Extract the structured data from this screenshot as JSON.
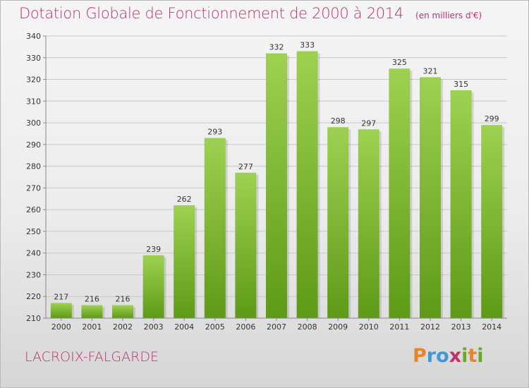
{
  "title": "Dotation Globale de Fonctionnement de 2000 à 2014",
  "unit_note": "(en milliers d'€)",
  "commune": "LACROIX-FALGARDE",
  "brand": {
    "text": "Proxiti",
    "letters": [
      {
        "ch": "P",
        "color": "#e8842a"
      },
      {
        "ch": "r",
        "color": "#3d9ad6"
      },
      {
        "ch": "o",
        "color": "#3d9ad6"
      },
      {
        "ch": "x",
        "color": "#c0306e"
      },
      {
        "ch": "i",
        "color": "#6aa82c"
      },
      {
        "ch": "t",
        "color": "#e8842a"
      },
      {
        "ch": "i",
        "color": "#6aa82c"
      }
    ]
  },
  "colors": {
    "bar_top": "#9ed151",
    "bar_bottom": "#5e9a17",
    "title": "#c0306e",
    "grid": "#c8c8c8"
  },
  "chart_data": {
    "type": "bar",
    "categories": [
      "2000",
      "2001",
      "2002",
      "2003",
      "2004",
      "2005",
      "2006",
      "2007",
      "2008",
      "2009",
      "2010",
      "2011",
      "2012",
      "2013",
      "2014"
    ],
    "values": [
      217,
      216,
      216,
      239,
      262,
      293,
      277,
      332,
      333,
      298,
      297,
      325,
      321,
      315,
      299
    ],
    "ylim": [
      210,
      340
    ],
    "yticks": [
      210,
      220,
      230,
      240,
      250,
      260,
      270,
      280,
      290,
      300,
      310,
      320,
      330,
      340
    ],
    "grid": true,
    "data_labels": true
  }
}
